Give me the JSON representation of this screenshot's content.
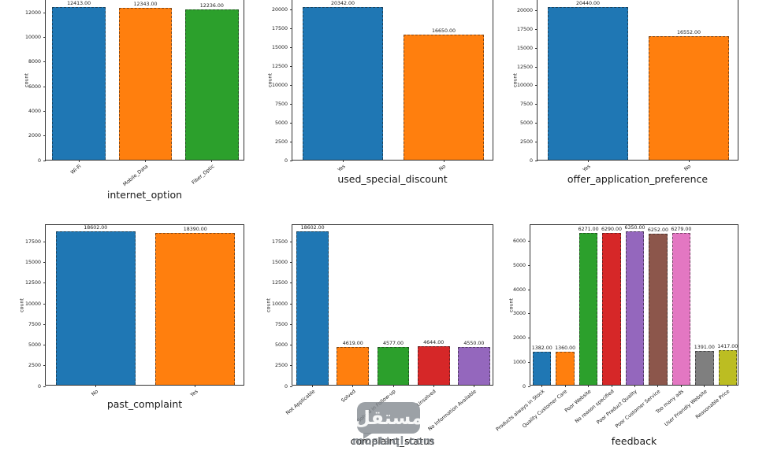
{
  "watermark": {
    "brand": "مستقل",
    "domain": "mostaql.com"
  },
  "chart_data": [
    {
      "type": "bar",
      "xlabel": "internet_option",
      "ylabel": "count",
      "categories": [
        "Wi-Fi",
        "Mobile_Data",
        "Fiber_Optic"
      ],
      "values": [
        12413,
        12343,
        12236
      ],
      "value_labels": [
        "12413.00",
        "12343.00",
        "12236.00"
      ],
      "colors": [
        "#1f77b4",
        "#ff7f0e",
        "#2ca02c"
      ],
      "yticks": [
        0,
        2000,
        4000,
        6000,
        8000,
        10000,
        12000
      ],
      "ylim": [
        0,
        13034
      ],
      "grid": false,
      "legend": null
    },
    {
      "type": "bar",
      "xlabel": "used_special_discount",
      "ylabel": "count",
      "categories": [
        "Yes",
        "No"
      ],
      "values": [
        20342,
        16650
      ],
      "value_labels": [
        "20342.00",
        "16650.00"
      ],
      "colors": [
        "#1f77b4",
        "#ff7f0e"
      ],
      "yticks": [
        0,
        2500,
        5000,
        7500,
        10000,
        12500,
        15000,
        17500,
        20000
      ],
      "ylim": [
        0,
        21359
      ],
      "grid": false,
      "legend": null
    },
    {
      "type": "bar",
      "xlabel": "offer_application_preference",
      "ylabel": "count",
      "categories": [
        "Yes",
        "No"
      ],
      "values": [
        20440,
        16552
      ],
      "value_labels": [
        "20440.00",
        "16552.00"
      ],
      "colors": [
        "#1f77b4",
        "#ff7f0e"
      ],
      "yticks": [
        0,
        2500,
        5000,
        7500,
        10000,
        12500,
        15000,
        17500,
        20000
      ],
      "ylim": [
        0,
        21462
      ],
      "grid": false,
      "legend": null
    },
    {
      "type": "bar",
      "xlabel": "past_complaint",
      "ylabel": "count",
      "categories": [
        "No",
        "Yes"
      ],
      "values": [
        18602,
        18390
      ],
      "value_labels": [
        "18602.00",
        "18390.00"
      ],
      "colors": [
        "#1f77b4",
        "#ff7f0e"
      ],
      "yticks": [
        0,
        2500,
        5000,
        7500,
        10000,
        12500,
        15000,
        17500
      ],
      "ylim": [
        0,
        19532
      ],
      "grid": false,
      "legend": null
    },
    {
      "type": "bar",
      "xlabel": "complaint_status",
      "ylabel": "count",
      "categories": [
        "Not Applicable",
        "Solved",
        "Solved in Follow-up",
        "Unsolved",
        "No Information Available"
      ],
      "values": [
        18602,
        4619,
        4577,
        4644,
        4550
      ],
      "value_labels": [
        "18602.00",
        "4619.00",
        "4577.00",
        "4644.00",
        "4550.00"
      ],
      "colors": [
        "#1f77b4",
        "#ff7f0e",
        "#2ca02c",
        "#d62728",
        "#9467bd"
      ],
      "yticks": [
        0,
        2500,
        5000,
        7500,
        10000,
        12500,
        15000,
        17500
      ],
      "ylim": [
        0,
        19532
      ],
      "grid": false,
      "legend": null
    },
    {
      "type": "bar",
      "xlabel": "feedback",
      "ylabel": "count",
      "categories": [
        "Products always in Stock",
        "Quality Customer Care",
        "Poor Website",
        "No reason specified",
        "Poor Product Quality",
        "Poor Customer Service",
        "Too many ads",
        "User Friendly Website",
        "Reasonable Price"
      ],
      "values": [
        1382,
        1360,
        6271,
        6290,
        6350,
        6252,
        6279,
        1391,
        1417
      ],
      "value_labels": [
        "1382.00",
        "1360.00",
        "6271.00",
        "6290.00",
        "6350.00",
        "6252.00",
        "6279.00",
        "1391.00",
        "1417.00"
      ],
      "colors": [
        "#1f77b4",
        "#ff7f0e",
        "#2ca02c",
        "#d62728",
        "#9467bd",
        "#8c564b",
        "#e377c2",
        "#7f7f7f",
        "#bcbd22"
      ],
      "yticks": [
        0,
        1000,
        2000,
        3000,
        4000,
        5000,
        6000
      ],
      "ylim": [
        0,
        6668
      ],
      "grid": false,
      "legend": null
    }
  ]
}
